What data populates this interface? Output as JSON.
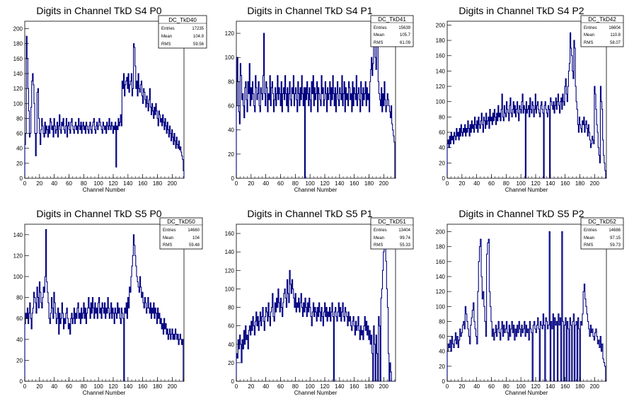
{
  "chart_data": [
    {
      "type": "histogram",
      "title": "Digits in Channel TkD S4 P0",
      "xlabel": "Channel Number",
      "ylabel": "",
      "xlim": [
        0,
        216
      ],
      "ylim": [
        0,
        210
      ],
      "xticks": [
        0,
        20,
        40,
        60,
        80,
        100,
        120,
        140,
        160,
        180,
        200
      ],
      "yticks": [
        0,
        20,
        40,
        60,
        80,
        100,
        120,
        140,
        160,
        180,
        200
      ],
      "line_color": "#000080",
      "stats": {
        "name": "DC_TkD40",
        "Entries": "17235",
        "Mean": "104.9",
        "RMS": "59.56"
      },
      "values": [
        45,
        60,
        190,
        160,
        120,
        90,
        55,
        60,
        95,
        130,
        140,
        125,
        100,
        60,
        30,
        60,
        115,
        120,
        80,
        60,
        45,
        65,
        80,
        70,
        60,
        55,
        75,
        60,
        70,
        65,
        55,
        70,
        60,
        80,
        75,
        65,
        70,
        55,
        80,
        70,
        60,
        65,
        75,
        55,
        70,
        85,
        65,
        60,
        75,
        70,
        80,
        65,
        60,
        70,
        80,
        55,
        70,
        75,
        65,
        60,
        75,
        80,
        70,
        65,
        60,
        70,
        75,
        65,
        70,
        60,
        80,
        70,
        65,
        75,
        60,
        70,
        75,
        65,
        70,
        60,
        75,
        70,
        65,
        60,
        70,
        75,
        65,
        60,
        70,
        75,
        80,
        65,
        60,
        70,
        75,
        65,
        70,
        80,
        75,
        70,
        65,
        60,
        75,
        70,
        65,
        70,
        60,
        75,
        70,
        65,
        80,
        70,
        65,
        75,
        70,
        60,
        70,
        65,
        75,
        15,
        70,
        65,
        80,
        70,
        75,
        85,
        70,
        130,
        120,
        140,
        110,
        125,
        130,
        135,
        120,
        140,
        115,
        125,
        130,
        140,
        110,
        120,
        180,
        175,
        150,
        120,
        130,
        110,
        140,
        120,
        115,
        125,
        130,
        110,
        100,
        120,
        115,
        105,
        95,
        110,
        100,
        90,
        105,
        120,
        95,
        85,
        100,
        90,
        80,
        95,
        85,
        100,
        90,
        80,
        70,
        90,
        85,
        75,
        80,
        70,
        85,
        75,
        65,
        80,
        70,
        60,
        75,
        65,
        55,
        70,
        60,
        50,
        65,
        55,
        45,
        60,
        50,
        40,
        55,
        45,
        40,
        50,
        38,
        42,
        35,
        30,
        25,
        10
      ]
    },
    {
      "type": "histogram",
      "title": "Digits in Channel TkD S4 P1",
      "xlabel": "Channel Number",
      "ylabel": "",
      "xlim": [
        0,
        216
      ],
      "ylim": [
        0,
        130
      ],
      "xticks": [
        0,
        20,
        40,
        60,
        80,
        100,
        120,
        140,
        160,
        180,
        200
      ],
      "yticks": [
        0,
        20,
        40,
        60,
        80,
        100,
        120
      ],
      "line_color": "#000080",
      "stats": {
        "name": "DC_TkD41",
        "Entries": "15639",
        "Mean": "105.7",
        "RMS": "61.09"
      },
      "values": [
        60,
        100,
        80,
        55,
        45,
        95,
        85,
        65,
        70,
        60,
        50,
        75,
        80,
        65,
        55,
        80,
        70,
        95,
        60,
        75,
        65,
        80,
        70,
        60,
        55,
        85,
        75,
        65,
        70,
        80,
        60,
        55,
        75,
        70,
        65,
        85,
        120,
        70,
        60,
        80,
        75,
        55,
        70,
        65,
        85,
        60,
        75,
        80,
        70,
        55,
        65,
        75,
        60,
        70,
        85,
        65,
        75,
        70,
        60,
        80,
        55,
        70,
        75,
        65,
        85,
        70,
        60,
        75,
        55,
        70,
        80,
        65,
        60,
        75,
        70,
        85,
        60,
        70,
        75,
        65,
        55,
        80,
        70,
        60,
        75,
        65,
        85,
        70,
        60,
        75,
        0,
        75,
        65,
        80,
        70,
        60,
        75,
        65,
        55,
        80,
        70,
        85,
        60,
        75,
        65,
        70,
        80,
        55,
        75,
        70,
        65,
        60,
        85,
        70,
        75,
        60,
        65,
        80,
        70,
        55,
        75,
        65,
        70,
        80,
        60,
        75,
        65,
        85,
        70,
        60,
        75,
        55,
        70,
        80,
        65,
        60,
        75,
        70,
        65,
        85,
        60,
        70,
        80,
        55,
        75,
        65,
        70,
        60,
        80,
        75,
        65,
        70,
        55,
        80,
        60,
        75,
        70,
        65,
        85,
        60,
        70,
        75,
        65,
        55,
        80,
        70,
        60,
        75,
        65,
        70,
        80,
        60,
        75,
        65,
        70,
        55,
        80,
        90,
        100,
        85,
        95,
        110,
        120,
        100,
        90,
        130,
        115,
        80,
        70,
        65,
        60,
        75,
        55,
        70,
        60,
        80,
        65,
        55,
        60,
        70,
        65,
        60,
        55,
        50,
        60,
        45,
        40,
        35,
        30,
        0
      ]
    },
    {
      "type": "histogram",
      "title": "Digits in Channel TkD S4 P2",
      "xlabel": "Channel Number",
      "ylabel": "",
      "xlim": [
        0,
        216
      ],
      "ylim": [
        0,
        205
      ],
      "xticks": [
        0,
        20,
        40,
        60,
        80,
        100,
        120,
        140,
        160,
        180,
        200
      ],
      "yticks": [
        0,
        20,
        40,
        60,
        80,
        100,
        120,
        140,
        160,
        180,
        200
      ],
      "line_color": "#000080",
      "stats": {
        "name": "DC_TkD42",
        "Entries": "16604",
        "Mean": "110.8",
        "RMS": "58.07"
      },
      "values": [
        45,
        50,
        40,
        55,
        45,
        60,
        50,
        55,
        45,
        60,
        55,
        50,
        65,
        55,
        60,
        50,
        65,
        55,
        70,
        60,
        55,
        65,
        60,
        70,
        55,
        65,
        60,
        75,
        65,
        55,
        70,
        60,
        75,
        65,
        70,
        60,
        80,
        70,
        65,
        75,
        60,
        80,
        70,
        65,
        75,
        85,
        70,
        60,
        80,
        75,
        65,
        85,
        70,
        75,
        80,
        65,
        90,
        75,
        80,
        70,
        85,
        75,
        90,
        80,
        70,
        85,
        75,
        95,
        80,
        85,
        75,
        90,
        110,
        80,
        75,
        95,
        85,
        80,
        100,
        90,
        85,
        75,
        95,
        105,
        85,
        80,
        90,
        100,
        85,
        95,
        80,
        90,
        100,
        85,
        75,
        95,
        90,
        85,
        100,
        110,
        85,
        95,
        90,
        0,
        100,
        85,
        90,
        95,
        80,
        105,
        90,
        85,
        100,
        95,
        80,
        90,
        110,
        85,
        95,
        100,
        90,
        85,
        80,
        95,
        100,
        90,
        85,
        0,
        95,
        100,
        90,
        85,
        80,
        95,
        90,
        0,
        105,
        100,
        95,
        90,
        100,
        85,
        95,
        105,
        90,
        100,
        110,
        95,
        85,
        100,
        105,
        90,
        110,
        100,
        95,
        120,
        130,
        110,
        100,
        120,
        140,
        150,
        190,
        170,
        160,
        140,
        130,
        180,
        170,
        120,
        100,
        90,
        70,
        60,
        80,
        70,
        65,
        60,
        75,
        70,
        80,
        60,
        70,
        75,
        65,
        55,
        70,
        60,
        50,
        40,
        45,
        55,
        50,
        45,
        120,
        110,
        90,
        70,
        60,
        40,
        30,
        20,
        120,
        100,
        90,
        50,
        30,
        20,
        10,
        0
      ]
    },
    {
      "type": "histogram",
      "title": "Digits in Channel TkD S5 P0",
      "xlabel": "Channel Number",
      "ylabel": "",
      "xlim": [
        0,
        216
      ],
      "ylim": [
        0,
        150
      ],
      "xticks": [
        0,
        20,
        40,
        60,
        80,
        100,
        120,
        140,
        160,
        180,
        200
      ],
      "yticks": [
        0,
        20,
        40,
        60,
        80,
        100,
        120,
        140
      ],
      "line_color": "#000080",
      "stats": {
        "name": "DC_TkD50",
        "Entries": "14660",
        "Mean": "104",
        "RMS": "59.48"
      },
      "values": [
        55,
        65,
        60,
        70,
        55,
        65,
        75,
        60,
        50,
        65,
        70,
        85,
        80,
        75,
        65,
        90,
        80,
        70,
        95,
        85,
        75,
        70,
        80,
        90,
        85,
        100,
        145,
        95,
        85,
        75,
        60,
        55,
        65,
        80,
        70,
        60,
        85,
        75,
        65,
        55,
        60,
        70,
        45,
        65,
        55,
        60,
        75,
        65,
        50,
        60,
        55,
        65,
        70,
        60,
        50,
        55,
        45,
        60,
        65,
        55,
        60,
        70,
        55,
        65,
        60,
        70,
        75,
        60,
        65,
        55,
        70,
        60,
        65,
        75,
        60,
        70,
        55,
        65,
        70,
        80,
        70,
        60,
        75,
        65,
        80,
        70,
        60,
        75,
        65,
        70,
        60,
        75,
        80,
        65,
        70,
        60,
        75,
        70,
        65,
        75,
        60,
        70,
        65,
        80,
        70,
        60,
        65,
        75,
        60,
        70,
        65,
        55,
        70,
        65,
        60,
        75,
        65,
        70,
        60,
        55,
        70,
        65,
        60,
        0,
        70,
        65,
        75,
        60,
        80,
        70,
        90,
        85,
        100,
        110,
        120,
        140,
        130,
        120,
        110,
        100,
        95,
        90,
        85,
        100,
        90,
        80,
        85,
        75,
        70,
        80,
        75,
        65,
        70,
        80,
        70,
        65,
        75,
        60,
        70,
        65,
        75,
        60,
        70,
        65,
        55,
        70,
        60,
        65,
        55,
        60,
        50,
        55,
        45,
        60,
        50,
        55,
        45,
        50,
        40,
        45,
        50,
        40,
        45,
        50,
        40,
        45,
        40,
        50,
        45,
        40,
        45,
        35,
        40,
        45,
        40,
        35,
        40,
        0
      ]
    },
    {
      "type": "histogram",
      "title": "Digits in Channel TkD S5 P1",
      "xlabel": "Channel Number",
      "ylabel": "",
      "xlim": [
        0,
        216
      ],
      "ylim": [
        0,
        170
      ],
      "xticks": [
        0,
        20,
        40,
        60,
        80,
        100,
        120,
        140,
        160,
        180,
        200
      ],
      "yticks": [
        0,
        20,
        40,
        60,
        80,
        100,
        120,
        140,
        160
      ],
      "line_color": "#000080",
      "stats": {
        "name": "DC_TkD51",
        "Entries": "13404",
        "Mean": "99.74",
        "RMS": "55.33"
      },
      "values": [
        30,
        25,
        45,
        35,
        50,
        40,
        20,
        45,
        35,
        55,
        40,
        60,
        45,
        50,
        35,
        55,
        60,
        50,
        65,
        55,
        70,
        60,
        50,
        65,
        75,
        60,
        70,
        55,
        65,
        75,
        60,
        70,
        80,
        65,
        55,
        70,
        80,
        75,
        65,
        85,
        70,
        60,
        75,
        80,
        95,
        70,
        65,
        85,
        75,
        90,
        80,
        100,
        85,
        75,
        90,
        80,
        70,
        85,
        95,
        100,
        90,
        80,
        110,
        95,
        85,
        120,
        105,
        95,
        110,
        100,
        90,
        80,
        95,
        75,
        85,
        80,
        90,
        75,
        85,
        95,
        80,
        70,
        85,
        75,
        90,
        80,
        70,
        85,
        75,
        90,
        80,
        70,
        60,
        75,
        85,
        70,
        80,
        75,
        65,
        80,
        70,
        85,
        75,
        65,
        80,
        70,
        60,
        75,
        85,
        70,
        80,
        65,
        75,
        70,
        80,
        65,
        75,
        85,
        70,
        0,
        75,
        80,
        70,
        65,
        75,
        85,
        70,
        80,
        65,
        75,
        85,
        70,
        65,
        80,
        75,
        70,
        60,
        75,
        65,
        70,
        60,
        55,
        65,
        70,
        60,
        50,
        65,
        55,
        60,
        70,
        55,
        45,
        60,
        50,
        55,
        45,
        60,
        70,
        55,
        65,
        50,
        60,
        45,
        55,
        40,
        50,
        30,
        0,
        60,
        40,
        0,
        50,
        30,
        0,
        70,
        60,
        0,
        90,
        100,
        120,
        140,
        145,
        150,
        130,
        100,
        80,
        30,
        0,
        20,
        10,
        0,
        0,
        0,
        0,
        0
      ]
    },
    {
      "type": "histogram",
      "title": "Digits in Channel TkD S5 P2",
      "xlabel": "Channel Number",
      "ylabel": "",
      "xlim": [
        0,
        216
      ],
      "ylim": [
        0,
        210
      ],
      "xticks": [
        0,
        20,
        40,
        60,
        80,
        100,
        120,
        140,
        160,
        180,
        200
      ],
      "yticks": [
        0,
        20,
        40,
        60,
        80,
        100,
        120,
        140,
        160,
        180,
        200
      ],
      "line_color": "#000080",
      "stats": {
        "name": "DC_TkD52",
        "Entries": "14686",
        "Mean": "97.15",
        "RMS": "59.73"
      },
      "values": [
        40,
        50,
        45,
        55,
        40,
        60,
        50,
        45,
        55,
        65,
        50,
        60,
        45,
        55,
        70,
        60,
        65,
        75,
        80,
        70,
        100,
        90,
        80,
        70,
        60,
        50,
        75,
        85,
        95,
        105,
        80,
        70,
        60,
        50,
        120,
        160,
        180,
        190,
        140,
        110,
        120,
        100,
        80,
        60,
        170,
        185,
        190,
        120,
        100,
        80,
        60,
        70,
        55,
        65,
        75,
        60,
        70,
        80,
        65,
        55,
        70,
        80,
        60,
        75,
        65,
        70,
        80,
        65,
        55,
        75,
        60,
        70,
        80,
        65,
        75,
        55,
        70,
        60,
        75,
        65,
        80,
        70,
        60,
        75,
        65,
        70,
        80,
        60,
        75,
        65,
        70,
        55,
        80,
        70,
        65,
        0,
        75,
        80,
        70,
        65,
        75,
        85,
        70,
        0,
        80,
        75,
        70,
        90,
        75,
        0,
        85,
        80,
        70,
        75,
        200,
        0,
        80,
        70,
        90,
        0,
        85,
        75,
        80,
        0,
        90,
        75,
        85,
        0,
        200,
        80,
        0,
        75,
        85,
        0,
        80,
        70,
        0,
        85,
        75,
        0,
        80,
        90,
        0,
        75,
        80,
        0,
        85,
        70,
        0,
        80,
        75,
        90,
        120,
        130,
        110,
        100,
        90,
        80,
        70,
        60,
        75,
        65,
        70,
        60,
        55,
        65,
        70,
        60,
        50,
        55,
        45,
        60,
        40,
        50,
        30,
        25,
        20,
        0
      ]
    }
  ]
}
